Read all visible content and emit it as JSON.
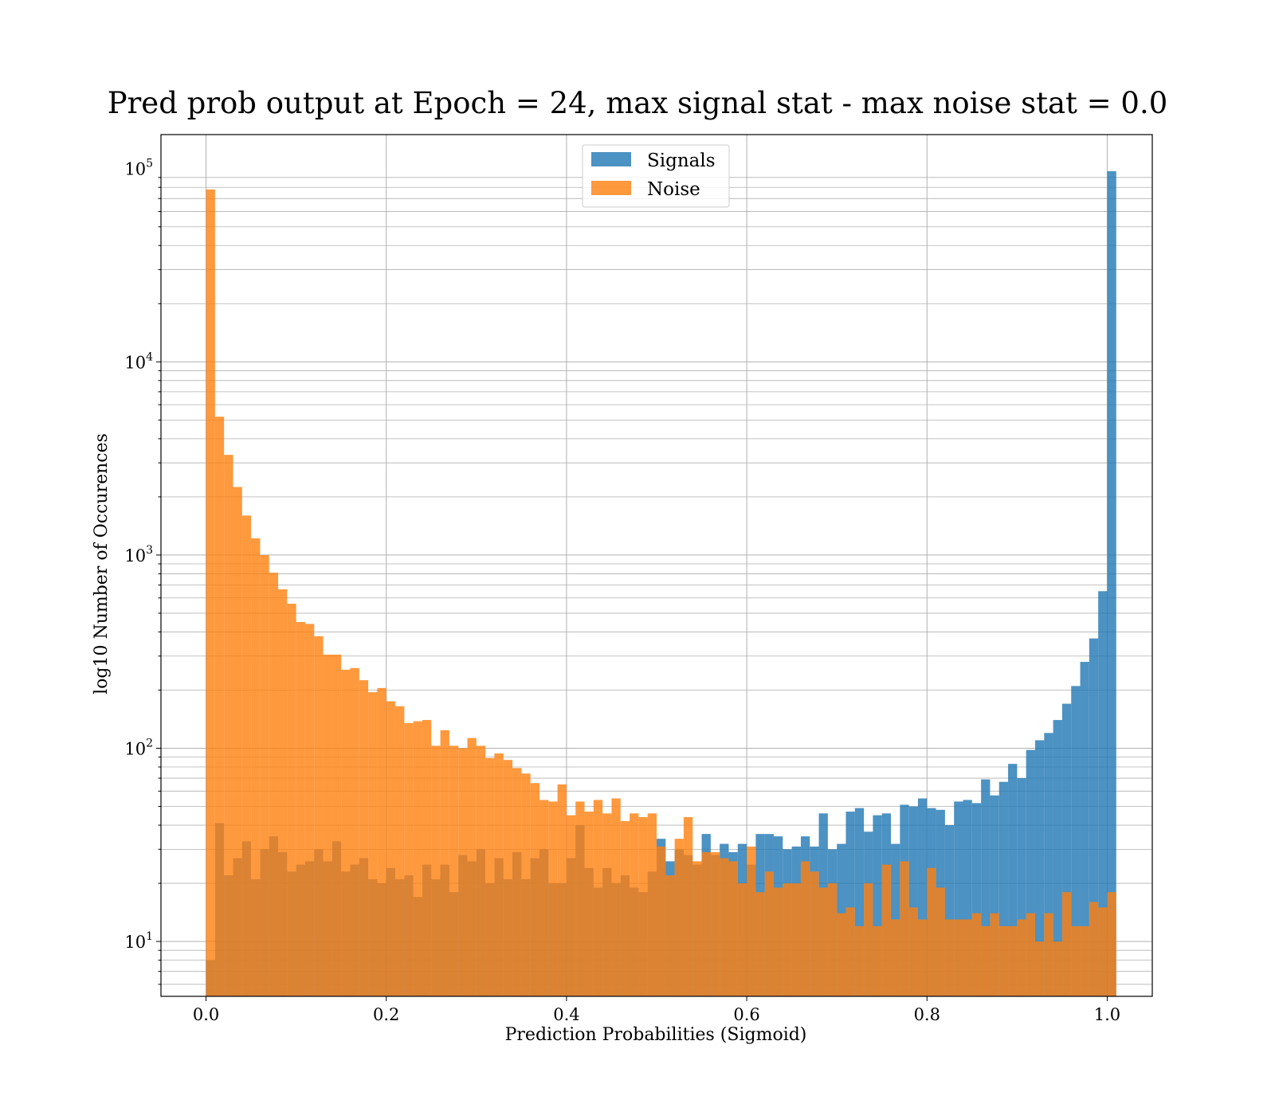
{
  "chart_data": {
    "type": "bar",
    "title": "Pred prob output at Epoch = 24, max signal stat - max noise stat = 0.0",
    "xlabel": "Prediction Probabilities (Sigmoid)",
    "ylabel": "log10 Number of Occurences",
    "yscale": "log",
    "xlim": [
      -0.05,
      1.05
    ],
    "ylim": [
      5.2,
      150000
    ],
    "grid": true,
    "legend_position": "top-center",
    "bin_start": 0.0,
    "bin_width": 0.01,
    "x_ticks": [
      {
        "value": 0.0,
        "label": "0.0"
      },
      {
        "value": 0.2,
        "label": "0.2"
      },
      {
        "value": 0.4,
        "label": "0.4"
      },
      {
        "value": 0.6,
        "label": "0.6"
      },
      {
        "value": 0.8,
        "label": "0.8"
      },
      {
        "value": 1.0,
        "label": "1.0"
      }
    ],
    "y_ticks": [
      {
        "value": 10,
        "base": "10",
        "exp": "1"
      },
      {
        "value": 100,
        "base": "10",
        "exp": "2"
      },
      {
        "value": 1000,
        "base": "10",
        "exp": "3"
      },
      {
        "value": 10000,
        "base": "10",
        "exp": "4"
      },
      {
        "value": 100000,
        "base": "10",
        "exp": "5"
      }
    ],
    "series": [
      {
        "name": "Signals",
        "color": "#1f77b4",
        "values": [
          8,
          41,
          22,
          27,
          33,
          21,
          30,
          35,
          29,
          23,
          25,
          26,
          30,
          26,
          33,
          23,
          25,
          27,
          21,
          20,
          24,
          21,
          22,
          17,
          25,
          21,
          25,
          18,
          28,
          26,
          30,
          20,
          27,
          21,
          29,
          21,
          27,
          30,
          20,
          20,
          27,
          40,
          24,
          19,
          24,
          20,
          22,
          19,
          18,
          23,
          34,
          26,
          30,
          28,
          25,
          36,
          28,
          32,
          29,
          32,
          25,
          36,
          36,
          35,
          30,
          31,
          35,
          31,
          46,
          30,
          32,
          47,
          49,
          37,
          45,
          46,
          32,
          51,
          50,
          55,
          49,
          48,
          40,
          53,
          54,
          52,
          69,
          57,
          67,
          83,
          70,
          98,
          110,
          120,
          140,
          170,
          210,
          280,
          370,
          650,
          97000
        ]
      },
      {
        "name": "Noise",
        "color": "#ff7f0e",
        "values": [
          78000,
          5200,
          3300,
          2250,
          1600,
          1220,
          1000,
          810,
          665,
          560,
          450,
          440,
          380,
          305,
          305,
          255,
          260,
          225,
          195,
          205,
          175,
          165,
          135,
          138,
          140,
          103,
          124,
          103,
          100,
          113,
          103,
          89,
          94,
          87,
          79,
          74,
          66,
          54,
          53,
          65,
          45,
          53,
          47,
          54,
          46,
          55,
          42,
          46,
          44,
          46,
          31,
          22,
          34,
          44,
          26,
          29,
          29,
          27,
          26,
          20,
          31,
          18,
          23,
          19,
          20,
          20,
          26,
          23,
          19,
          20,
          14,
          15,
          12,
          20,
          12,
          25,
          13,
          26,
          15,
          13,
          24,
          19,
          13,
          13,
          13,
          14,
          12,
          14,
          12,
          12,
          13,
          14,
          10,
          14,
          10,
          18,
          12,
          12,
          16,
          15,
          18
        ]
      }
    ]
  }
}
